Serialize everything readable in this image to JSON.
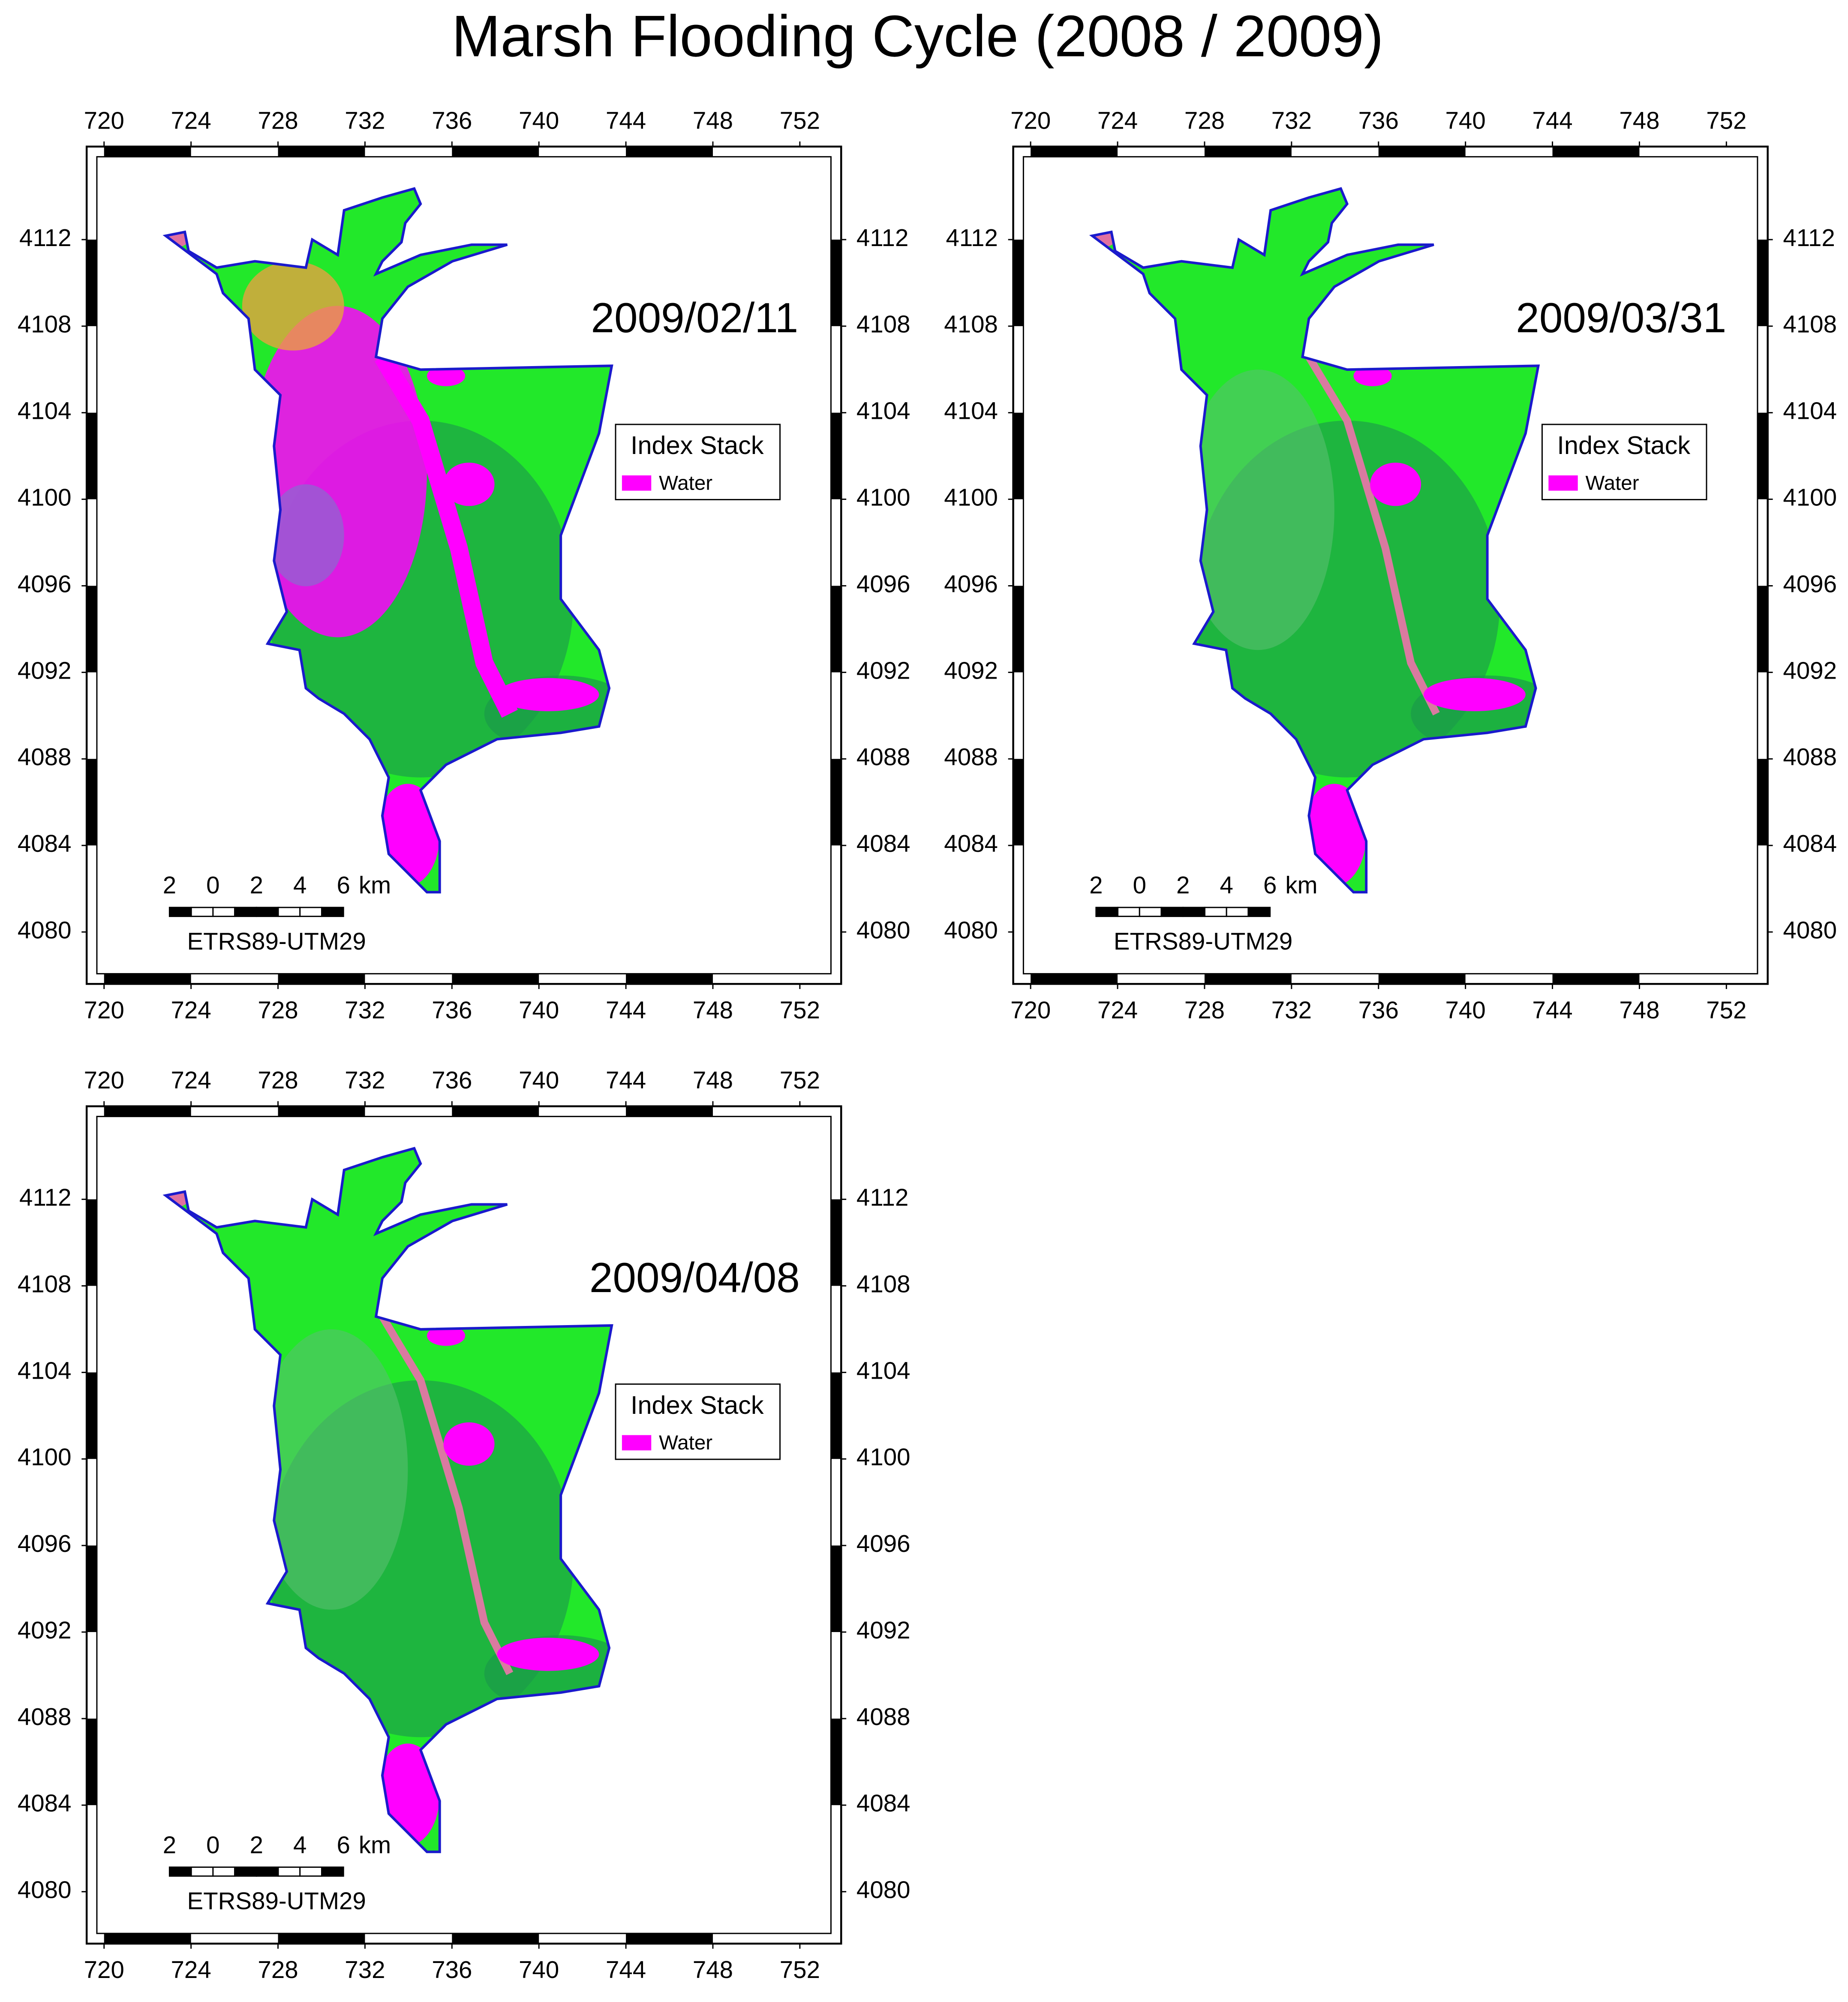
{
  "title": "Marsh Flooding Cycle (2008 / 2009)",
  "axes": {
    "xlim": [
      719.2,
      753.9
    ],
    "ylim": [
      4077.6,
      4116.3
    ],
    "xticks": [
      720,
      724,
      728,
      732,
      736,
      740,
      744,
      748,
      752
    ],
    "yticks": [
      4080,
      4084,
      4088,
      4092,
      4096,
      4100,
      4104,
      4108,
      4112
    ]
  },
  "panels": [
    {
      "date": "2009/02/11",
      "legend": {
        "title": "Index Stack",
        "items": [
          {
            "label": "Water",
            "color": "#ff00ff"
          }
        ]
      }
    },
    {
      "date": "2009/03/31",
      "legend": {
        "title": "Index Stack",
        "items": [
          {
            "label": "Water",
            "color": "#ff00ff"
          }
        ]
      }
    },
    {
      "date": "2009/04/08",
      "legend": {
        "title": "Index Stack",
        "items": [
          {
            "label": "Water",
            "color": "#ff00ff"
          }
        ]
      }
    }
  ],
  "scale_bar": {
    "ticks": [
      {
        "value": -2,
        "label": "2"
      },
      0,
      2,
      4,
      6
    ],
    "unit": "km",
    "crs": "ETRS89-UTM29"
  }
}
